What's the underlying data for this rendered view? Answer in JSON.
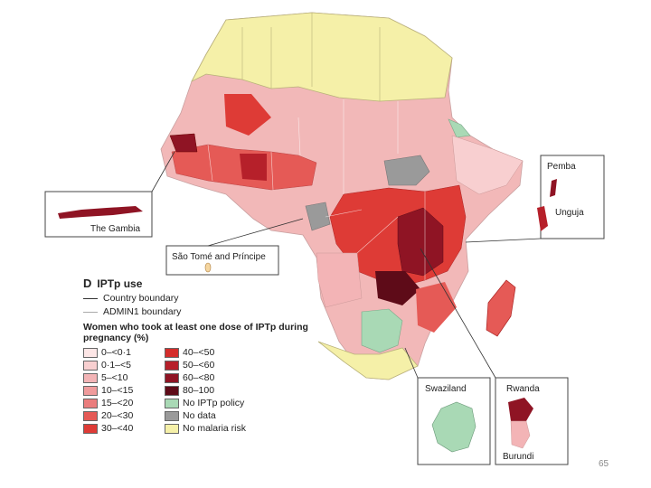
{
  "legend": {
    "letter": "D",
    "title": "IPTp use",
    "boundary_items": [
      "Country boundary",
      "ADMIN1 boundary"
    ],
    "women_title": "Women who took at least one dose of IPTp during pregnancy (%)",
    "categories": [
      {
        "label": "0–<0·1",
        "color": "#fde6e6"
      },
      {
        "label": "0·1–<5",
        "color": "#f8cfd0"
      },
      {
        "label": "5–<10",
        "color": "#f3b4b6"
      },
      {
        "label": "10–<15",
        "color": "#ef9b9c"
      },
      {
        "label": "15–<20",
        "color": "#ea7d7d"
      },
      {
        "label": "20–<30",
        "color": "#e55a56"
      },
      {
        "label": "30–<40",
        "color": "#de3b36"
      },
      {
        "label": "40–<50",
        "color": "#d42d2b"
      },
      {
        "label": "50–<60",
        "color": "#b6202a"
      },
      {
        "label": "60–<80",
        "color": "#8f1424"
      },
      {
        "label": "80–100",
        "color": "#5e0b18"
      },
      {
        "label": "No IPTp policy",
        "color": "#a9d9b5"
      },
      {
        "label": "No data",
        "color": "#9a9a9a"
      },
      {
        "label": "No malaria risk",
        "color": "#f5f0a8"
      }
    ]
  },
  "insets": {
    "gambia": "The Gambia",
    "sao_tome": "São Tomé and Príncipe",
    "pemba": "Pemba",
    "unguja": "Unguja",
    "swaziland": "Swaziland",
    "rwanda": "Rwanda",
    "burundi": "Burundi"
  },
  "page_number": "65"
}
